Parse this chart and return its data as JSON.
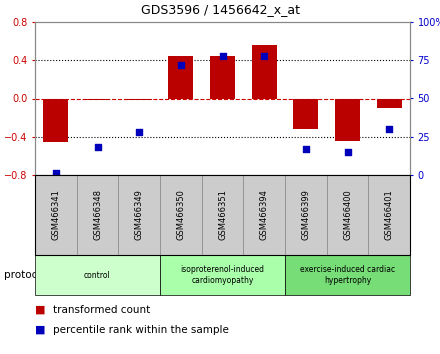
{
  "title": "GDS3596 / 1456642_x_at",
  "samples": [
    "GSM466341",
    "GSM466348",
    "GSM466349",
    "GSM466350",
    "GSM466351",
    "GSM466394",
    "GSM466399",
    "GSM466400",
    "GSM466401"
  ],
  "transformed_count": [
    -0.46,
    -0.02,
    -0.02,
    0.44,
    0.44,
    0.56,
    -0.32,
    -0.44,
    -0.1
  ],
  "percentile_rank": [
    1,
    18,
    28,
    72,
    78,
    78,
    17,
    15,
    30
  ],
  "ylim_left": [
    -0.8,
    0.8
  ],
  "ylim_right": [
    0,
    100
  ],
  "yticks_left": [
    -0.8,
    -0.4,
    0.0,
    0.4,
    0.8
  ],
  "yticks_right": [
    0,
    25,
    50,
    75,
    100
  ],
  "bar_color": "#bb0000",
  "dot_color": "#0000bb",
  "groups": [
    {
      "label": "control",
      "start": 0,
      "end": 3,
      "color": "#ccffcc"
    },
    {
      "label": "isoproterenol-induced\ncardiomyopathy",
      "start": 3,
      "end": 6,
      "color": "#aaffaa"
    },
    {
      "label": "exercise-induced cardiac\nhypertrophy",
      "start": 6,
      "end": 9,
      "color": "#77dd77"
    }
  ],
  "protocol_label": "protocol",
  "legend_bar_label": "transformed count",
  "legend_dot_label": "percentile rank within the sample",
  "bg_color": "#ffffff",
  "zero_line_color": "#cc0000",
  "sample_box_color": "#cccccc",
  "sample_box_border": "#888888"
}
